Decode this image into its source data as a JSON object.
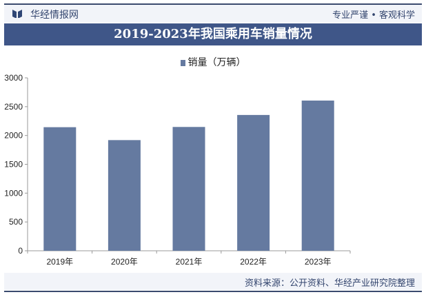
{
  "header": {
    "brand": "华经情报网",
    "slogan": "专业严谨 • 客观科学"
  },
  "footer": {
    "source": "资料来源：公开资料、华经产业研究院整理"
  },
  "colors": {
    "banner": "#3f5688",
    "bar": "#657aa0"
  },
  "chart_data": {
    "type": "bar",
    "title": "2019-2023年我国乘用车销量情况",
    "categories": [
      "2019年",
      "2020年",
      "2021年",
      "2022年",
      "2023年"
    ],
    "series": [
      {
        "name": "销量（万辆）",
        "values": [
          2144,
          1920,
          2148,
          2356,
          2606
        ]
      }
    ],
    "ylim": [
      0,
      3000
    ],
    "yticks": [
      "0",
      "500",
      "1000",
      "1500",
      "2000",
      "2500",
      "3000"
    ],
    "grid": false,
    "legend": "top-center"
  }
}
